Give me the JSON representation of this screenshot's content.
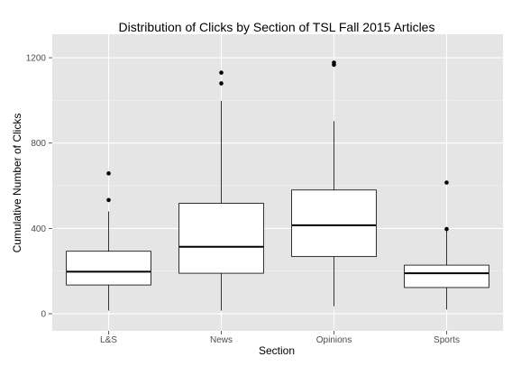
{
  "chart_data": {
    "type": "boxplot",
    "title": "Distribution of Clicks by Section of TSL Fall 2015 Articles",
    "xlabel": "Section",
    "ylabel": "Cumulative Number of Clicks",
    "ylim": [
      -80,
      1310
    ],
    "yticks": [
      0,
      400,
      800,
      1200
    ],
    "categories": [
      "L&S",
      "News",
      "Opinions",
      "Sports"
    ],
    "boxes": [
      {
        "category": "L&S",
        "whisker_low": 15,
        "q1": 135,
        "median": 197,
        "q3": 293,
        "whisker_high": 480,
        "outliers": [
          533,
          658
        ]
      },
      {
        "category": "News",
        "whisker_low": 15,
        "q1": 190,
        "median": 314,
        "q3": 518,
        "whisker_high": 998,
        "outliers": [
          1080,
          1130
        ]
      },
      {
        "category": "Opinions",
        "whisker_low": 35,
        "q1": 268,
        "median": 415,
        "q3": 580,
        "whisker_high": 903,
        "outliers": [
          1167,
          1177
        ]
      },
      {
        "category": "Sports",
        "whisker_low": 20,
        "q1": 123,
        "median": 190,
        "q3": 228,
        "whisker_high": 395,
        "outliers": [
          397,
          615
        ]
      }
    ],
    "grid": true
  },
  "colors": {
    "panel": "#e5e5e5",
    "grid_major": "#ffffff",
    "grid_minor": "#f2f2f2",
    "box_fill": "#ffffff",
    "ink": "#000000",
    "tick_text": "#4d4d4d"
  }
}
